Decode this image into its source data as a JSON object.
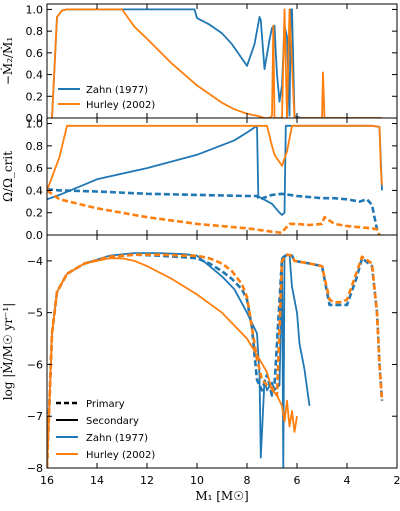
{
  "colors": {
    "zahn": "#1f77b4",
    "hurley": "#ff7f0e",
    "axis": "#000000"
  },
  "chart_data": [
    {
      "type": "line",
      "panel": "mass-ratio",
      "ylabel": "−Ṁ₂/Ṁ₁",
      "ylim": [
        0,
        1.05
      ],
      "xlim": [
        16,
        2
      ],
      "yticks": [
        "0.0",
        "0.2",
        "0.4",
        "0.6",
        "0.8",
        "1.0"
      ],
      "legend_position": "lower-left",
      "series": [
        {
          "name": "Zahn (1977)",
          "style": "solid",
          "color": "#1f77b4",
          "x": [
            15.8,
            15.6,
            15.4,
            15.2,
            13,
            12,
            10.1,
            10.0,
            9.5,
            9.0,
            8.6,
            8.0,
            7.7,
            7.5,
            7.45,
            7.3,
            7.1,
            7.0,
            6.9,
            6.85,
            6.8,
            6.7,
            6.6,
            6.5,
            6.4,
            6.3,
            6.25,
            6.2,
            6.1,
            6.0,
            5.8,
            5.5,
            5.0,
            4.0,
            3.0,
            2.6
          ],
          "y": [
            0.0,
            0.93,
            0.99,
            1.0,
            1.0,
            1.0,
            1.0,
            0.92,
            0.86,
            0.78,
            0.68,
            0.48,
            0.68,
            0.93,
            0.9,
            0.45,
            0.72,
            0.83,
            0.85,
            0.6,
            0.4,
            0.15,
            0.3,
            0.85,
            0.75,
            0.02,
            1.0,
            1.0,
            0.02,
            0.01,
            0.0,
            0.0,
            0.0,
            0.0,
            0.0,
            0.0
          ]
        },
        {
          "name": "Hurley (2002)",
          "style": "solid",
          "color": "#ff7f0e",
          "x": [
            15.8,
            15.6,
            15.4,
            15.2,
            13,
            12.5,
            12,
            11,
            10,
            9,
            8.5,
            8,
            7.6,
            7.3,
            7.1,
            7.0,
            6.95,
            6.9,
            6.6,
            6.5,
            6.4,
            6.3,
            6.1,
            5.8,
            5.0,
            4.96,
            4.9,
            4.0,
            3.0,
            2.6
          ],
          "y": [
            0.0,
            0.93,
            0.99,
            1.0,
            1.0,
            0.84,
            0.73,
            0.5,
            0.3,
            0.14,
            0.08,
            0.04,
            0.02,
            0.0,
            0.0,
            0.02,
            0.85,
            0.0,
            0.0,
            1.0,
            0.0,
            1.0,
            0.0,
            0.0,
            0.0,
            0.42,
            0.0,
            0.0,
            0.0,
            0.0
          ]
        }
      ]
    },
    {
      "type": "line",
      "panel": "rotation",
      "ylabel": "Ω/Ω_crit",
      "ylim": [
        0,
        1.05
      ],
      "xlim": [
        16,
        2
      ],
      "yticks": [
        "0.0",
        "0.2",
        "0.4",
        "0.6",
        "0.8",
        "1.0"
      ],
      "series": [
        {
          "name": "Zahn (1977) primary",
          "style": "dashed",
          "color": "#1f77b4",
          "x": [
            16,
            15.5,
            14,
            12,
            10,
            8,
            7.6,
            7.5,
            7.0,
            6.6,
            6.3,
            6.0,
            5.5,
            5.0,
            4.5,
            4.0,
            3.5,
            3.2,
            3.0,
            2.8,
            2.7
          ],
          "y": [
            0.41,
            0.4,
            0.39,
            0.37,
            0.36,
            0.35,
            0.35,
            0.32,
            0.36,
            0.37,
            0.36,
            0.35,
            0.34,
            0.33,
            0.33,
            0.32,
            0.3,
            0.32,
            0.27,
            0.05,
            0.0
          ]
        },
        {
          "name": "Zahn (1977) secondary",
          "style": "solid",
          "color": "#1f77b4",
          "x": [
            16,
            15.5,
            14,
            12,
            10,
            8.5,
            8.0,
            7.6,
            7.55,
            7.5,
            7.0,
            6.7,
            6.6,
            6.5,
            6.45,
            6.0,
            5.5,
            5.0,
            4.0,
            3.0,
            2.7,
            2.6
          ],
          "y": [
            0.32,
            0.36,
            0.5,
            0.6,
            0.72,
            0.85,
            0.92,
            0.98,
            0.35,
            0.34,
            0.28,
            0.2,
            0.18,
            0.2,
            0.98,
            0.98,
            0.98,
            0.98,
            0.98,
            0.98,
            0.97,
            0.4
          ]
        },
        {
          "name": "Hurley (2002) primary",
          "style": "dashed",
          "color": "#ff7f0e",
          "x": [
            16,
            15.5,
            14,
            12,
            10,
            8,
            7.0,
            6.6,
            6.5,
            6.3,
            6.0,
            5.5,
            5.0,
            4.9,
            4.5,
            4.0,
            3.5,
            3.0,
            2.8,
            2.7
          ],
          "y": [
            0.4,
            0.32,
            0.24,
            0.16,
            0.1,
            0.06,
            0.03,
            0.02,
            0.05,
            0.1,
            0.1,
            0.09,
            0.1,
            0.16,
            0.1,
            0.08,
            0.07,
            0.06,
            0.05,
            0.0
          ]
        },
        {
          "name": "Hurley (2002) secondary",
          "style": "solid",
          "color": "#ff7f0e",
          "x": [
            16,
            15.5,
            15.2,
            14,
            12,
            10,
            8,
            7.2,
            7.0,
            6.9,
            6.6,
            6.4,
            6.2,
            6.0,
            5.0,
            4.0,
            3.0,
            2.7,
            2.65,
            2.6
          ],
          "y": [
            0.4,
            0.7,
            0.98,
            0.98,
            0.98,
            0.98,
            0.98,
            0.98,
            0.8,
            0.72,
            0.62,
            0.75,
            0.98,
            0.98,
            0.98,
            0.98,
            0.98,
            0.97,
            0.6,
            0.45
          ]
        }
      ]
    },
    {
      "type": "line",
      "panel": "mass-transfer-rate",
      "ylabel": "log |Ṁ/M☉ yr⁻¹|",
      "xlabel": "M₁ [M☉]",
      "ylim": [
        -8,
        -3.5
      ],
      "xlim": [
        16,
        2
      ],
      "yticks": [
        "−8",
        "−7",
        "−6",
        "−5",
        "−4"
      ],
      "xticks": [
        "16",
        "14",
        "12",
        "10",
        "8",
        "6",
        "4",
        "2"
      ],
      "legend_position": "lower-left",
      "legend": [
        "Primary",
        "Secondary",
        "Zahn (1977)",
        "Hurley (2002)"
      ],
      "series": [
        {
          "name": "Zahn (1977) primary",
          "style": "dashed",
          "color": "#1f77b4",
          "x": [
            16,
            15.8,
            15.6,
            15.2,
            14.5,
            13.5,
            12.5,
            11.5,
            10.5,
            10,
            9.5,
            9.0,
            8.6,
            8.2,
            8.0,
            7.8,
            7.7,
            7.6,
            7.4,
            7.2,
            7.0,
            6.9,
            6.6,
            6.4,
            6.2,
            6.1,
            5.5,
            5.0,
            4.7,
            4.5,
            4.3,
            4.0,
            3.6,
            3.4,
            3.0,
            2.8,
            2.7,
            2.6
          ],
          "y": [
            -8,
            -5.4,
            -4.6,
            -4.25,
            -4.05,
            -3.92,
            -3.88,
            -3.9,
            -3.93,
            -3.95,
            -4.05,
            -4.2,
            -4.35,
            -4.55,
            -4.75,
            -5.3,
            -5.8,
            -6.3,
            -6.5,
            -6.2,
            -6.6,
            -6.4,
            -3.95,
            -3.88,
            -3.9,
            -4.0,
            -4.05,
            -4.1,
            -4.85,
            -4.85,
            -4.85,
            -4.85,
            -4.3,
            -3.95,
            -4.1,
            -5.0,
            -6.0,
            -6.7
          ]
        },
        {
          "name": "Zahn (1977) secondary",
          "style": "solid",
          "color": "#1f77b4",
          "x": [
            16,
            15.8,
            15.6,
            15.2,
            14.5,
            13.5,
            12.5,
            11.5,
            10.5,
            10.0,
            9.5,
            9.0,
            8.5,
            8.0,
            7.6,
            7.5,
            7.45,
            7.3,
            7.2,
            7.0,
            6.9,
            6.7,
            6.6,
            6.55,
            6.5,
            6.3,
            6.2,
            6.0,
            5.9,
            5.7,
            5.5
          ],
          "y": [
            -8,
            -5.4,
            -4.6,
            -4.25,
            -4.05,
            -3.9,
            -3.85,
            -3.85,
            -3.87,
            -3.9,
            -4.1,
            -4.3,
            -4.55,
            -5.0,
            -5.4,
            -6.2,
            -7.8,
            -6.3,
            -6.5,
            -6.35,
            -6.5,
            -6.4,
            -3.95,
            -8.0,
            -3.9,
            -3.88,
            -4.5,
            -5.0,
            -5.6,
            -6.1,
            -6.8
          ]
        },
        {
          "name": "Hurley (2002) primary",
          "style": "dashed",
          "color": "#ff7f0e",
          "x": [
            16,
            15.8,
            15.6,
            15.2,
            14.5,
            13.5,
            12.5,
            11.5,
            10.5,
            10,
            9.5,
            9.0,
            8.6,
            8.2,
            8.0,
            7.8,
            7.6,
            7.4,
            7.2,
            7.0,
            6.8,
            6.6,
            6.4,
            6.2,
            6.1,
            5.5,
            5.0,
            4.7,
            4.5,
            4.3,
            4.0,
            3.6,
            3.4,
            3.0,
            2.8,
            2.7,
            2.6
          ],
          "y": [
            -8,
            -5.4,
            -4.6,
            -4.25,
            -4.05,
            -3.92,
            -3.88,
            -3.88,
            -3.9,
            -3.9,
            -3.95,
            -4.05,
            -4.2,
            -4.45,
            -4.7,
            -5.3,
            -5.9,
            -6.3,
            -6.4,
            -6.45,
            -6.6,
            -4.0,
            -3.88,
            -3.9,
            -4.0,
            -4.05,
            -4.1,
            -4.75,
            -4.8,
            -4.8,
            -4.75,
            -4.2,
            -3.92,
            -4.05,
            -5.0,
            -6.0,
            -6.7
          ]
        },
        {
          "name": "Hurley (2002) secondary",
          "style": "solid",
          "color": "#ff7f0e",
          "x": [
            16,
            15.8,
            15.6,
            15.2,
            14.5,
            13.5,
            13.0,
            12.5,
            12,
            11,
            10,
            9,
            8,
            7.5,
            7.2,
            7.0,
            6.8,
            6.6,
            6.5,
            6.4,
            6.3,
            6.2,
            6.1,
            6.0
          ],
          "y": [
            -8,
            -5.4,
            -4.6,
            -4.25,
            -4.05,
            -3.95,
            -3.95,
            -4.0,
            -4.1,
            -4.35,
            -4.65,
            -5.0,
            -5.5,
            -5.9,
            -6.15,
            -6.5,
            -6.6,
            -6.8,
            -7.1,
            -6.7,
            -7.2,
            -6.9,
            -7.3,
            -7.0
          ]
        }
      ]
    }
  ]
}
